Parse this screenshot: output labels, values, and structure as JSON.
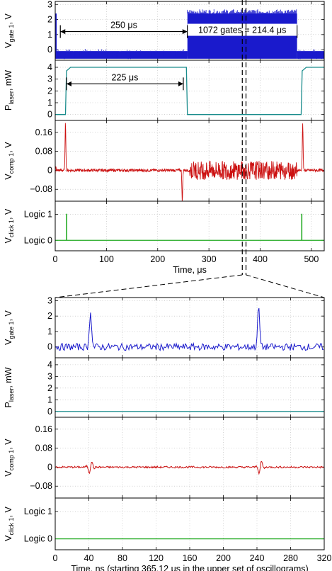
{
  "colors": {
    "gate": "#1a1acc",
    "laser": "#1a8c8c",
    "comp": "#cc1111",
    "click": "#22aa22",
    "axis": "#000000"
  },
  "chart_data": [
    {
      "type": "line",
      "group": "upper oscillograms",
      "x_range": [
        0,
        525
      ],
      "xticks": [
        0,
        100,
        200,
        300,
        400,
        500
      ],
      "xlabel": "Time, μs",
      "panels": [
        {
          "id": "gate",
          "ylabel": "V",
          "ylabel_main": "V",
          "ylabel_sub": "gate 1",
          "ylabel_unit": ", V",
          "ylim": [
            -0.7,
            3.2
          ],
          "yticks": [
            0,
            1,
            2,
            3
          ],
          "ytick_labels": [
            "0",
            "1",
            "2",
            "3"
          ],
          "series": [
            {
              "segments": [
                [
                  0,
                  2
                ],
                [
                  18,
                  258
                ],
                [
                  258,
                  476
                ],
                [
                  476,
                  525
                ]
              ],
              "levels": [
                2.4,
                -0.5,
                2.4,
                -0.5
              ]
            }
          ],
          "annotations": [
            {
              "text": "250 μs",
              "x_start": 10,
              "x_end": 258,
              "y": 1.2
            },
            {
              "text": "1072 gates = 214.4 μs",
              "x_start": 258,
              "x_end": 472,
              "y": 1.2
            }
          ]
        },
        {
          "id": "laser",
          "ylabel_main": "P",
          "ylabel_sub": "laser",
          "ylabel_unit": ", mW",
          "ylim": [
            -0.5,
            4.6
          ],
          "yticks": [
            0,
            1,
            2,
            3,
            4
          ],
          "ytick_labels": [
            "0",
            "1",
            "2",
            "3",
            "4"
          ],
          "series": [
            {
              "x": [
                0,
                20,
                22,
                30,
                40,
                250,
                256,
                258,
                480,
                482,
                490,
                525
              ],
              "y": [
                0,
                0,
                3.7,
                4.0,
                4.0,
                4.0,
                4.0,
                0,
                0,
                3.7,
                4.0,
                4.0
              ]
            }
          ],
          "annotations": [
            {
              "text": "225 μs",
              "x_start": 22,
              "x_end": 250,
              "y": 2.6
            }
          ]
        },
        {
          "id": "comp",
          "ylabel_main": "V",
          "ylabel_sub": "comp 1",
          "ylabel_unit": ", V",
          "ylim": [
            -0.13,
            0.21
          ],
          "yticks": [
            -0.08,
            0,
            0.08,
            0.16
          ],
          "ytick_labels": [
            "−0.08",
            "0",
            "0.08",
            "0.16"
          ],
          "series": [
            {
              "events": [
                {
                  "x": 20,
                  "y": 0.2
                },
                {
                  "x": 248,
                  "y": -0.13
                },
                {
                  "x": 483,
                  "y": 0.2
                }
              ],
              "burst": [
                262,
                472,
                0.04
              ]
            }
          ]
        },
        {
          "id": "click",
          "ylabel_main": "V",
          "ylabel_sub": "click 1",
          "ylabel_unit": ", V",
          "ylim": [
            -0.4,
            1.5
          ],
          "yticks": [
            0,
            1
          ],
          "ytick_labels": [
            "Logic 0",
            "Logic 1"
          ],
          "series": [
            {
              "pulses_x": [
                22,
                481
              ],
              "level": 1
            }
          ]
        }
      ],
      "zoom_marker_x": [
        365.12,
        365.44
      ]
    },
    {
      "type": "line",
      "group": "lower oscillograms",
      "x_range": [
        0,
        320
      ],
      "xticks": [
        0,
        40,
        80,
        120,
        160,
        200,
        240,
        280,
        320
      ],
      "xlabel": "Time, ns (starting 365.12 μs in the upper set of oscillograms)",
      "panels": [
        {
          "id": "gate",
          "ylabel_main": "V",
          "ylabel_sub": "gate 1",
          "ylabel_unit": ", V",
          "ylim": [
            -0.7,
            3.2
          ],
          "yticks": [
            0,
            1,
            2,
            3
          ],
          "ytick_labels": [
            "0",
            "1",
            "2",
            "3"
          ],
          "series": [
            {
              "peaks": [
                {
                  "x": 42,
                  "y": 2.4
                },
                {
                  "x": 242,
                  "y": 2.6
                }
              ],
              "noise": 0.2
            }
          ]
        },
        {
          "id": "laser",
          "ylabel_main": "P",
          "ylabel_sub": "laser",
          "ylabel_unit": ", mW",
          "ylim": [
            -0.5,
            4.6
          ],
          "yticks": [
            0,
            1,
            2,
            3,
            4
          ],
          "ytick_labels": [
            "0",
            "1",
            "2",
            "3",
            "4"
          ],
          "series": [
            {
              "x": [
                0,
                320
              ],
              "y": [
                0,
                0
              ]
            }
          ]
        },
        {
          "id": "comp",
          "ylabel_main": "V",
          "ylabel_sub": "comp 1",
          "ylabel_unit": ", V",
          "ylim": [
            -0.13,
            0.21
          ],
          "yticks": [
            -0.08,
            0,
            0.08,
            0.16
          ],
          "ytick_labels": [
            "−0.08",
            "0",
            "0.08",
            "0.16"
          ],
          "series": [
            {
              "wiggles_x": [
                42,
                244
              ],
              "amplitude": 0.03
            }
          ]
        },
        {
          "id": "click",
          "ylabel_main": "V",
          "ylabel_sub": "click 1",
          "ylabel_unit": ", V",
          "ylim": [
            -0.4,
            1.5
          ],
          "yticks": [
            0,
            1
          ],
          "ytick_labels": [
            "Logic 0",
            "Logic 1"
          ],
          "series": [
            {
              "x": [
                0,
                320
              ],
              "y": [
                0,
                0
              ]
            }
          ]
        }
      ]
    }
  ]
}
